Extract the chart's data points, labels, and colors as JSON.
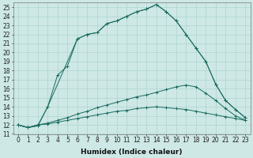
{
  "xlabel": "Humidex (Indice chaleur)",
  "bg_color": "#cde8e5",
  "line_color": "#1a6b60",
  "grid_color": "#a8cfcc",
  "ylim": [
    11,
    25.5
  ],
  "yticks": [
    11,
    12,
    13,
    14,
    15,
    16,
    17,
    18,
    19,
    20,
    21,
    22,
    23,
    24,
    25
  ],
  "xticks": [
    0,
    1,
    2,
    3,
    4,
    5,
    6,
    7,
    8,
    9,
    10,
    11,
    12,
    13,
    14,
    15,
    16,
    17,
    18,
    19,
    20,
    21,
    22,
    23
  ],
  "tick_fontsize": 5.5,
  "label_fontsize": 6.5,
  "line1_x": [
    0,
    1,
    2,
    3,
    6,
    7,
    8,
    9,
    10,
    11,
    12,
    13,
    14,
    15,
    16,
    17,
    18,
    19,
    20,
    21,
    22,
    23
  ],
  "line1_y": [
    12.0,
    11.7,
    11.9,
    14.0,
    21.5,
    22.0,
    22.2,
    23.2,
    23.5,
    24.0,
    24.5,
    24.8,
    25.3,
    24.5,
    23.5,
    22.0,
    20.5,
    19.0,
    16.5,
    14.7,
    13.7,
    12.8
  ],
  "line2_x": [
    0,
    1,
    2,
    3,
    4,
    5,
    6,
    7,
    8,
    9,
    10,
    11,
    12,
    13,
    14,
    15,
    16,
    17,
    18,
    19,
    20,
    21,
    22,
    23
  ],
  "line2_y": [
    12.0,
    11.7,
    11.9,
    14.0,
    17.5,
    18.5,
    21.5,
    22.0,
    22.2,
    23.2,
    23.5,
    24.0,
    24.5,
    24.8,
    25.3,
    24.5,
    23.5,
    22.0,
    20.5,
    19.0,
    16.5,
    14.7,
    13.7,
    12.8
  ],
  "line3_x": [
    0,
    1,
    2,
    3,
    4,
    5,
    6,
    7,
    8,
    9,
    10,
    11,
    12,
    13,
    14,
    15,
    16,
    17,
    18,
    19,
    20,
    21,
    22,
    23
  ],
  "line3_y": [
    12.0,
    11.7,
    12.0,
    12.2,
    12.5,
    12.8,
    13.2,
    13.5,
    13.9,
    14.2,
    14.5,
    14.8,
    15.1,
    15.3,
    15.6,
    15.9,
    16.2,
    16.4,
    16.2,
    15.5,
    14.7,
    13.8,
    13.0,
    12.5
  ],
  "line4_x": [
    0,
    1,
    2,
    3,
    4,
    5,
    6,
    7,
    8,
    9,
    10,
    11,
    12,
    13,
    14,
    15,
    16,
    17,
    18,
    19,
    20,
    21,
    22,
    23
  ],
  "line4_y": [
    12.0,
    11.7,
    12.0,
    12.1,
    12.3,
    12.5,
    12.7,
    12.9,
    13.1,
    13.3,
    13.5,
    13.6,
    13.8,
    13.9,
    14.0,
    13.9,
    13.8,
    13.7,
    13.5,
    13.3,
    13.1,
    12.9,
    12.7,
    12.5
  ]
}
